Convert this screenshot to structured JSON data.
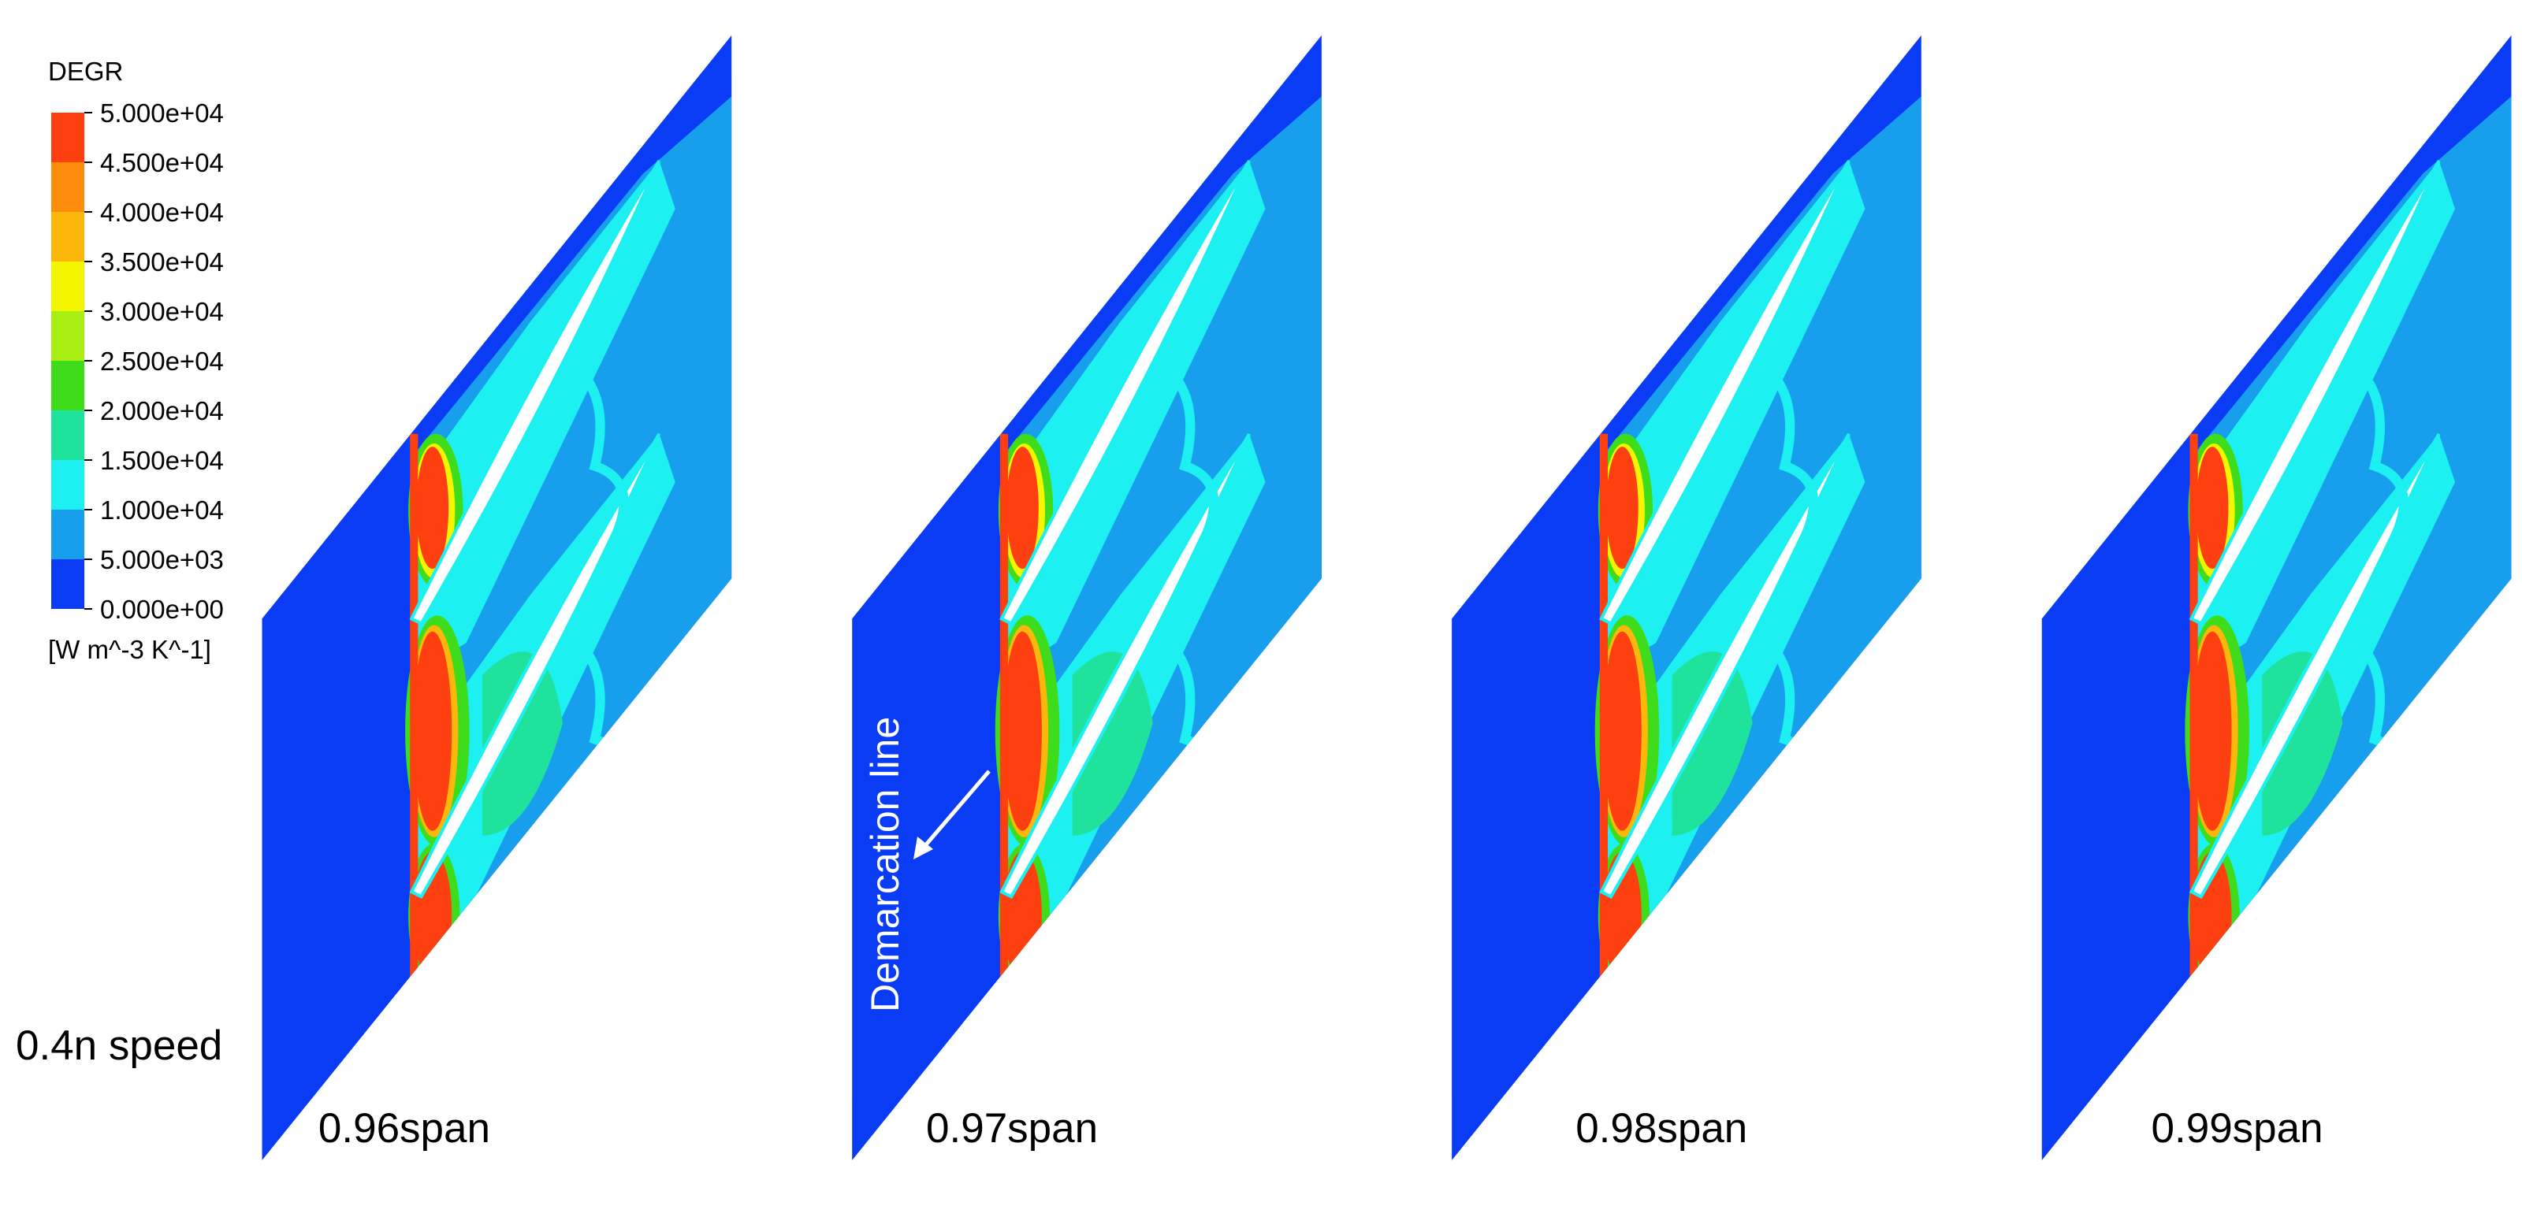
{
  "legend": {
    "title": "DEGR",
    "levels": [
      "5.000e+04",
      "4.500e+04",
      "4.000e+04",
      "3.500e+04",
      "3.000e+04",
      "2.500e+04",
      "2.000e+04",
      "1.500e+04",
      "1.000e+04",
      "5.000e+03",
      "0.000e+00"
    ],
    "colors": [
      "#fe3f10",
      "#fc8c0b",
      "#fbb80a",
      "#f4f600",
      "#a8ee12",
      "#3edc1a",
      "#1fe39c",
      "#1cf0f0",
      "#179fee",
      "#0b3cf5"
    ],
    "unit": "[W m^-3 K^-1]"
  },
  "row_label": "0.4n speed",
  "annotation": "Demarcation line",
  "panels": [
    {
      "label": "0.96span"
    },
    {
      "label": "0.97span"
    },
    {
      "label": "0.98span"
    },
    {
      "label": "0.99span"
    }
  ]
}
